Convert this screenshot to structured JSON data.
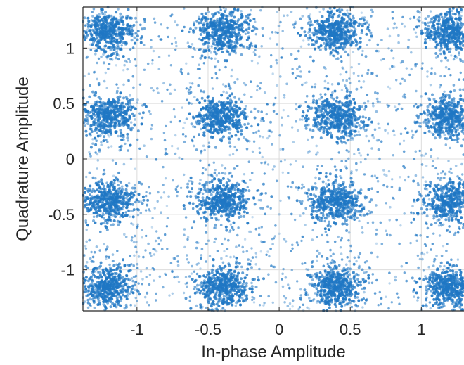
{
  "chart_data": {
    "type": "scatter",
    "title": "",
    "xlabel": "In-phase Amplitude",
    "ylabel": "Quadrature Amplitude",
    "xlim": [
      -1.38,
      1.3
    ],
    "ylim": [
      -1.37,
      1.37
    ],
    "grid": true,
    "marker_color": "#1f77c4",
    "x_ticks": [
      -1,
      -0.5,
      0,
      0.5,
      1
    ],
    "x_tick_labels": [
      "-1",
      "-0.5",
      "0",
      "0.5",
      "1"
    ],
    "y_ticks": [
      -1,
      -0.5,
      0,
      0.5,
      1
    ],
    "y_tick_labels": [
      "-1",
      "-0.5",
      "0",
      "0.5",
      "1"
    ],
    "constellation": {
      "i_levels": [
        -1.2,
        -0.4,
        0.4,
        1.2
      ],
      "q_levels": [
        -1.15,
        -0.38,
        0.38,
        1.15
      ],
      "cluster_spread": 0.09
    },
    "series": [
      {
        "x": [
          -1.2,
          -0.4,
          0.4,
          1.2,
          -1.2,
          -0.4,
          0.4,
          1.2,
          -1.2,
          -0.4,
          0.4,
          1.2,
          -1.2,
          -0.4,
          0.4,
          1.2
        ],
        "y": [
          1.15,
          1.15,
          1.15,
          1.15,
          0.38,
          0.38,
          0.38,
          0.38,
          -0.38,
          -0.38,
          -0.38,
          -0.38,
          -1.15,
          -1.15,
          -1.15,
          -1.15
        ]
      }
    ]
  }
}
